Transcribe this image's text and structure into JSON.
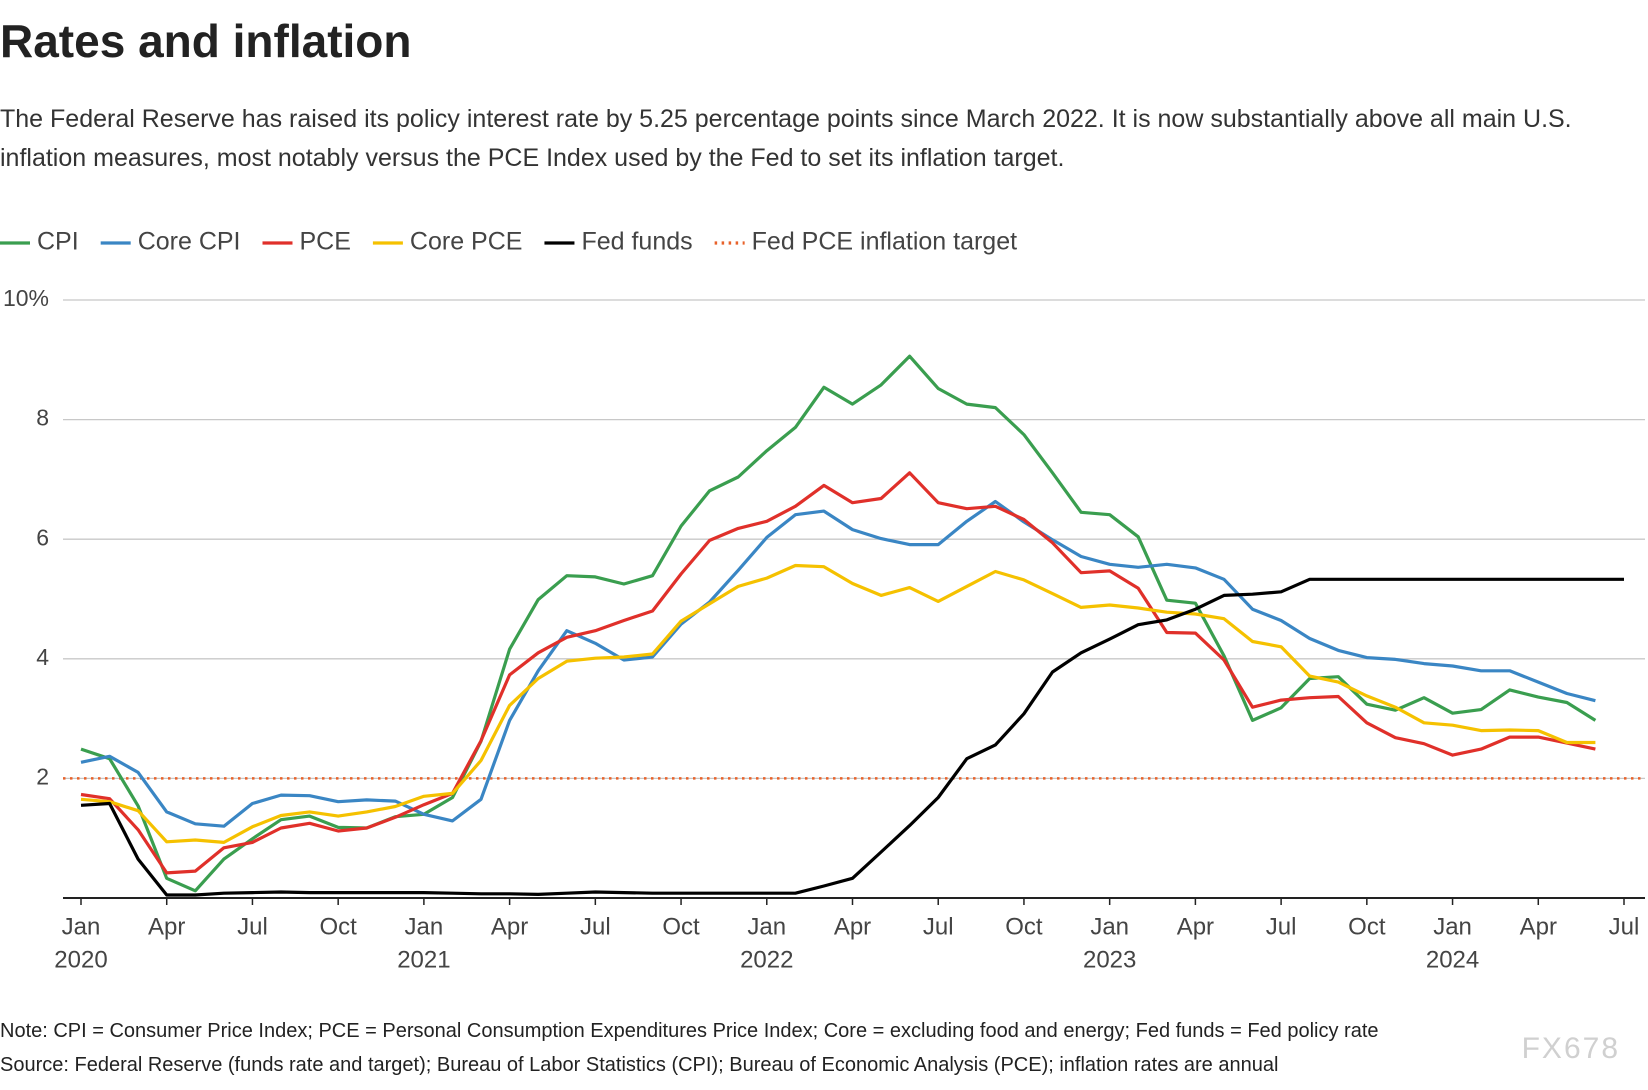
{
  "chart_data": {
    "type": "line",
    "title": "Rates and inflation",
    "subtitle": "The Federal Reserve has raised its policy interest rate by 5.25 percentage points since March 2022. It is now substantially above all main U.S. inflation measures, most notably versus the PCE Index used by the Fed to set its inflation target.",
    "notes": [
      "Note: CPI = Consumer Price Index; PCE = Personal Consumption Expenditures Price Index; Core = excluding food and energy; Fed funds = Fed policy rate",
      "Source: Federal Reserve (funds rate and target); Bureau of Labor Statistics (CPI); Bureau of Economic Analysis (PCE); inflation rates are annual"
    ],
    "watermark": "FX678",
    "x": [
      "2020-01",
      "2020-02",
      "2020-03",
      "2020-04",
      "2020-05",
      "2020-06",
      "2020-07",
      "2020-08",
      "2020-09",
      "2020-10",
      "2020-11",
      "2020-12",
      "2021-01",
      "2021-02",
      "2021-03",
      "2021-04",
      "2021-05",
      "2021-06",
      "2021-07",
      "2021-08",
      "2021-09",
      "2021-10",
      "2021-11",
      "2021-12",
      "2022-01",
      "2022-02",
      "2022-03",
      "2022-04",
      "2022-05",
      "2022-06",
      "2022-07",
      "2022-08",
      "2022-09",
      "2022-10",
      "2022-11",
      "2022-12",
      "2023-01",
      "2023-02",
      "2023-03",
      "2023-04",
      "2023-05",
      "2023-06",
      "2023-07",
      "2023-08",
      "2023-09",
      "2023-10",
      "2023-11",
      "2023-12",
      "2024-01",
      "2024-02",
      "2024-03",
      "2024-04",
      "2024-05",
      "2024-06",
      "2024-07"
    ],
    "series": [
      {
        "name": "CPI",
        "color": "#3a9e4f",
        "values": [
          2.49,
          2.33,
          1.54,
          0.33,
          0.12,
          0.65,
          0.99,
          1.31,
          1.37,
          1.18,
          1.17,
          1.36,
          1.4,
          1.68,
          2.62,
          4.16,
          4.99,
          5.39,
          5.37,
          5.25,
          5.39,
          6.22,
          6.81,
          7.04,
          7.48,
          7.87,
          8.54,
          8.26,
          8.58,
          9.06,
          8.52,
          8.26,
          8.2,
          7.75,
          7.11,
          6.45,
          6.41,
          6.04,
          4.98,
          4.93,
          4.05,
          2.97,
          3.18,
          3.67,
          3.7,
          3.24,
          3.14,
          3.35,
          3.09,
          3.15,
          3.48,
          3.36,
          3.27,
          2.97,
          null
        ]
      },
      {
        "name": "Core CPI",
        "color": "#3a86c4",
        "values": [
          2.27,
          2.37,
          2.1,
          1.44,
          1.24,
          1.2,
          1.58,
          1.72,
          1.71,
          1.61,
          1.64,
          1.62,
          1.4,
          1.29,
          1.65,
          2.97,
          3.8,
          4.47,
          4.26,
          3.98,
          4.03,
          4.58,
          4.95,
          5.48,
          6.03,
          6.41,
          6.47,
          6.16,
          6.01,
          5.91,
          5.91,
          6.3,
          6.63,
          6.29,
          5.99,
          5.71,
          5.58,
          5.53,
          5.58,
          5.52,
          5.33,
          4.83,
          4.64,
          4.34,
          4.14,
          4.02,
          3.99,
          3.92,
          3.88,
          3.8,
          3.8,
          3.61,
          3.42,
          3.3,
          null
        ]
      },
      {
        "name": "PCE",
        "color": "#e0302a",
        "values": [
          1.73,
          1.66,
          1.14,
          0.42,
          0.45,
          0.84,
          0.93,
          1.17,
          1.25,
          1.12,
          1.17,
          1.35,
          1.56,
          1.75,
          2.63,
          3.73,
          4.1,
          4.36,
          4.47,
          4.64,
          4.8,
          5.42,
          5.98,
          6.18,
          6.3,
          6.55,
          6.9,
          6.61,
          6.68,
          7.11,
          6.61,
          6.51,
          6.55,
          6.33,
          5.94,
          5.44,
          5.47,
          5.18,
          4.44,
          4.43,
          3.98,
          3.19,
          3.31,
          3.35,
          3.37,
          2.93,
          2.68,
          2.58,
          2.39,
          2.49,
          2.69,
          2.69,
          2.59,
          2.49,
          null
        ]
      },
      {
        "name": "Core PCE",
        "color": "#f5c100",
        "values": [
          1.65,
          1.61,
          1.46,
          0.94,
          0.97,
          0.93,
          1.19,
          1.38,
          1.44,
          1.37,
          1.44,
          1.53,
          1.7,
          1.75,
          2.3,
          3.22,
          3.67,
          3.96,
          4.01,
          4.03,
          4.08,
          4.63,
          4.92,
          5.21,
          5.35,
          5.56,
          5.54,
          5.26,
          5.06,
          5.19,
          4.96,
          5.21,
          5.46,
          5.32,
          5.09,
          4.86,
          4.9,
          4.85,
          4.78,
          4.75,
          4.67,
          4.29,
          4.2,
          3.71,
          3.61,
          3.38,
          3.19,
          2.93,
          2.89,
          2.8,
          2.81,
          2.8,
          2.6,
          2.6,
          null
        ]
      },
      {
        "name": "Fed funds",
        "color": "#000000",
        "values": [
          1.55,
          1.58,
          0.65,
          0.05,
          0.05,
          0.08,
          0.09,
          0.1,
          0.09,
          0.09,
          0.09,
          0.09,
          0.09,
          0.08,
          0.07,
          0.07,
          0.06,
          0.08,
          0.1,
          0.09,
          0.08,
          0.08,
          0.08,
          0.08,
          0.08,
          0.08,
          0.2,
          0.33,
          0.77,
          1.21,
          1.68,
          2.33,
          2.56,
          3.08,
          3.78,
          4.1,
          4.33,
          4.57,
          4.65,
          4.83,
          5.06,
          5.08,
          5.12,
          5.33,
          5.33,
          5.33,
          5.33,
          5.33,
          5.33,
          5.33,
          5.33,
          5.33,
          5.33,
          5.33,
          5.33
        ]
      }
    ],
    "target": {
      "name": "Fed PCE inflation target",
      "value": 2,
      "color": "#e8622a"
    },
    "xlim": [
      "2020-01",
      "2024-07"
    ],
    "xticks": [
      {
        "value": "2020-01",
        "label": "Jan"
      },
      {
        "value": "2020-04",
        "label": "Apr"
      },
      {
        "value": "2020-07",
        "label": "Jul"
      },
      {
        "value": "2020-10",
        "label": "Oct"
      },
      {
        "value": "2021-01",
        "label": "Jan"
      },
      {
        "value": "2021-04",
        "label": "Apr"
      },
      {
        "value": "2021-07",
        "label": "Jul"
      },
      {
        "value": "2021-10",
        "label": "Oct"
      },
      {
        "value": "2022-01",
        "label": "Jan"
      },
      {
        "value": "2022-04",
        "label": "Apr"
      },
      {
        "value": "2022-07",
        "label": "Jul"
      },
      {
        "value": "2022-10",
        "label": "Oct"
      },
      {
        "value": "2023-01",
        "label": "Jan"
      },
      {
        "value": "2023-04",
        "label": "Apr"
      },
      {
        "value": "2023-07",
        "label": "Jul"
      },
      {
        "value": "2023-10",
        "label": "Oct"
      },
      {
        "value": "2024-01",
        "label": "Jan"
      },
      {
        "value": "2024-04",
        "label": "Apr"
      },
      {
        "value": "2024-07",
        "label": "Jul"
      }
    ],
    "x_year_labels": [
      {
        "value": "2020-01",
        "label": "2020"
      },
      {
        "value": "2021-01",
        "label": "2021"
      },
      {
        "value": "2022-01",
        "label": "2022"
      },
      {
        "value": "2023-01",
        "label": "2023"
      },
      {
        "value": "2024-01",
        "label": "2024"
      }
    ],
    "ylim": [
      0,
      10
    ],
    "yticks": [
      2,
      4,
      6,
      8,
      {
        "value": 10,
        "label": "10%"
      }
    ],
    "grid": true
  }
}
